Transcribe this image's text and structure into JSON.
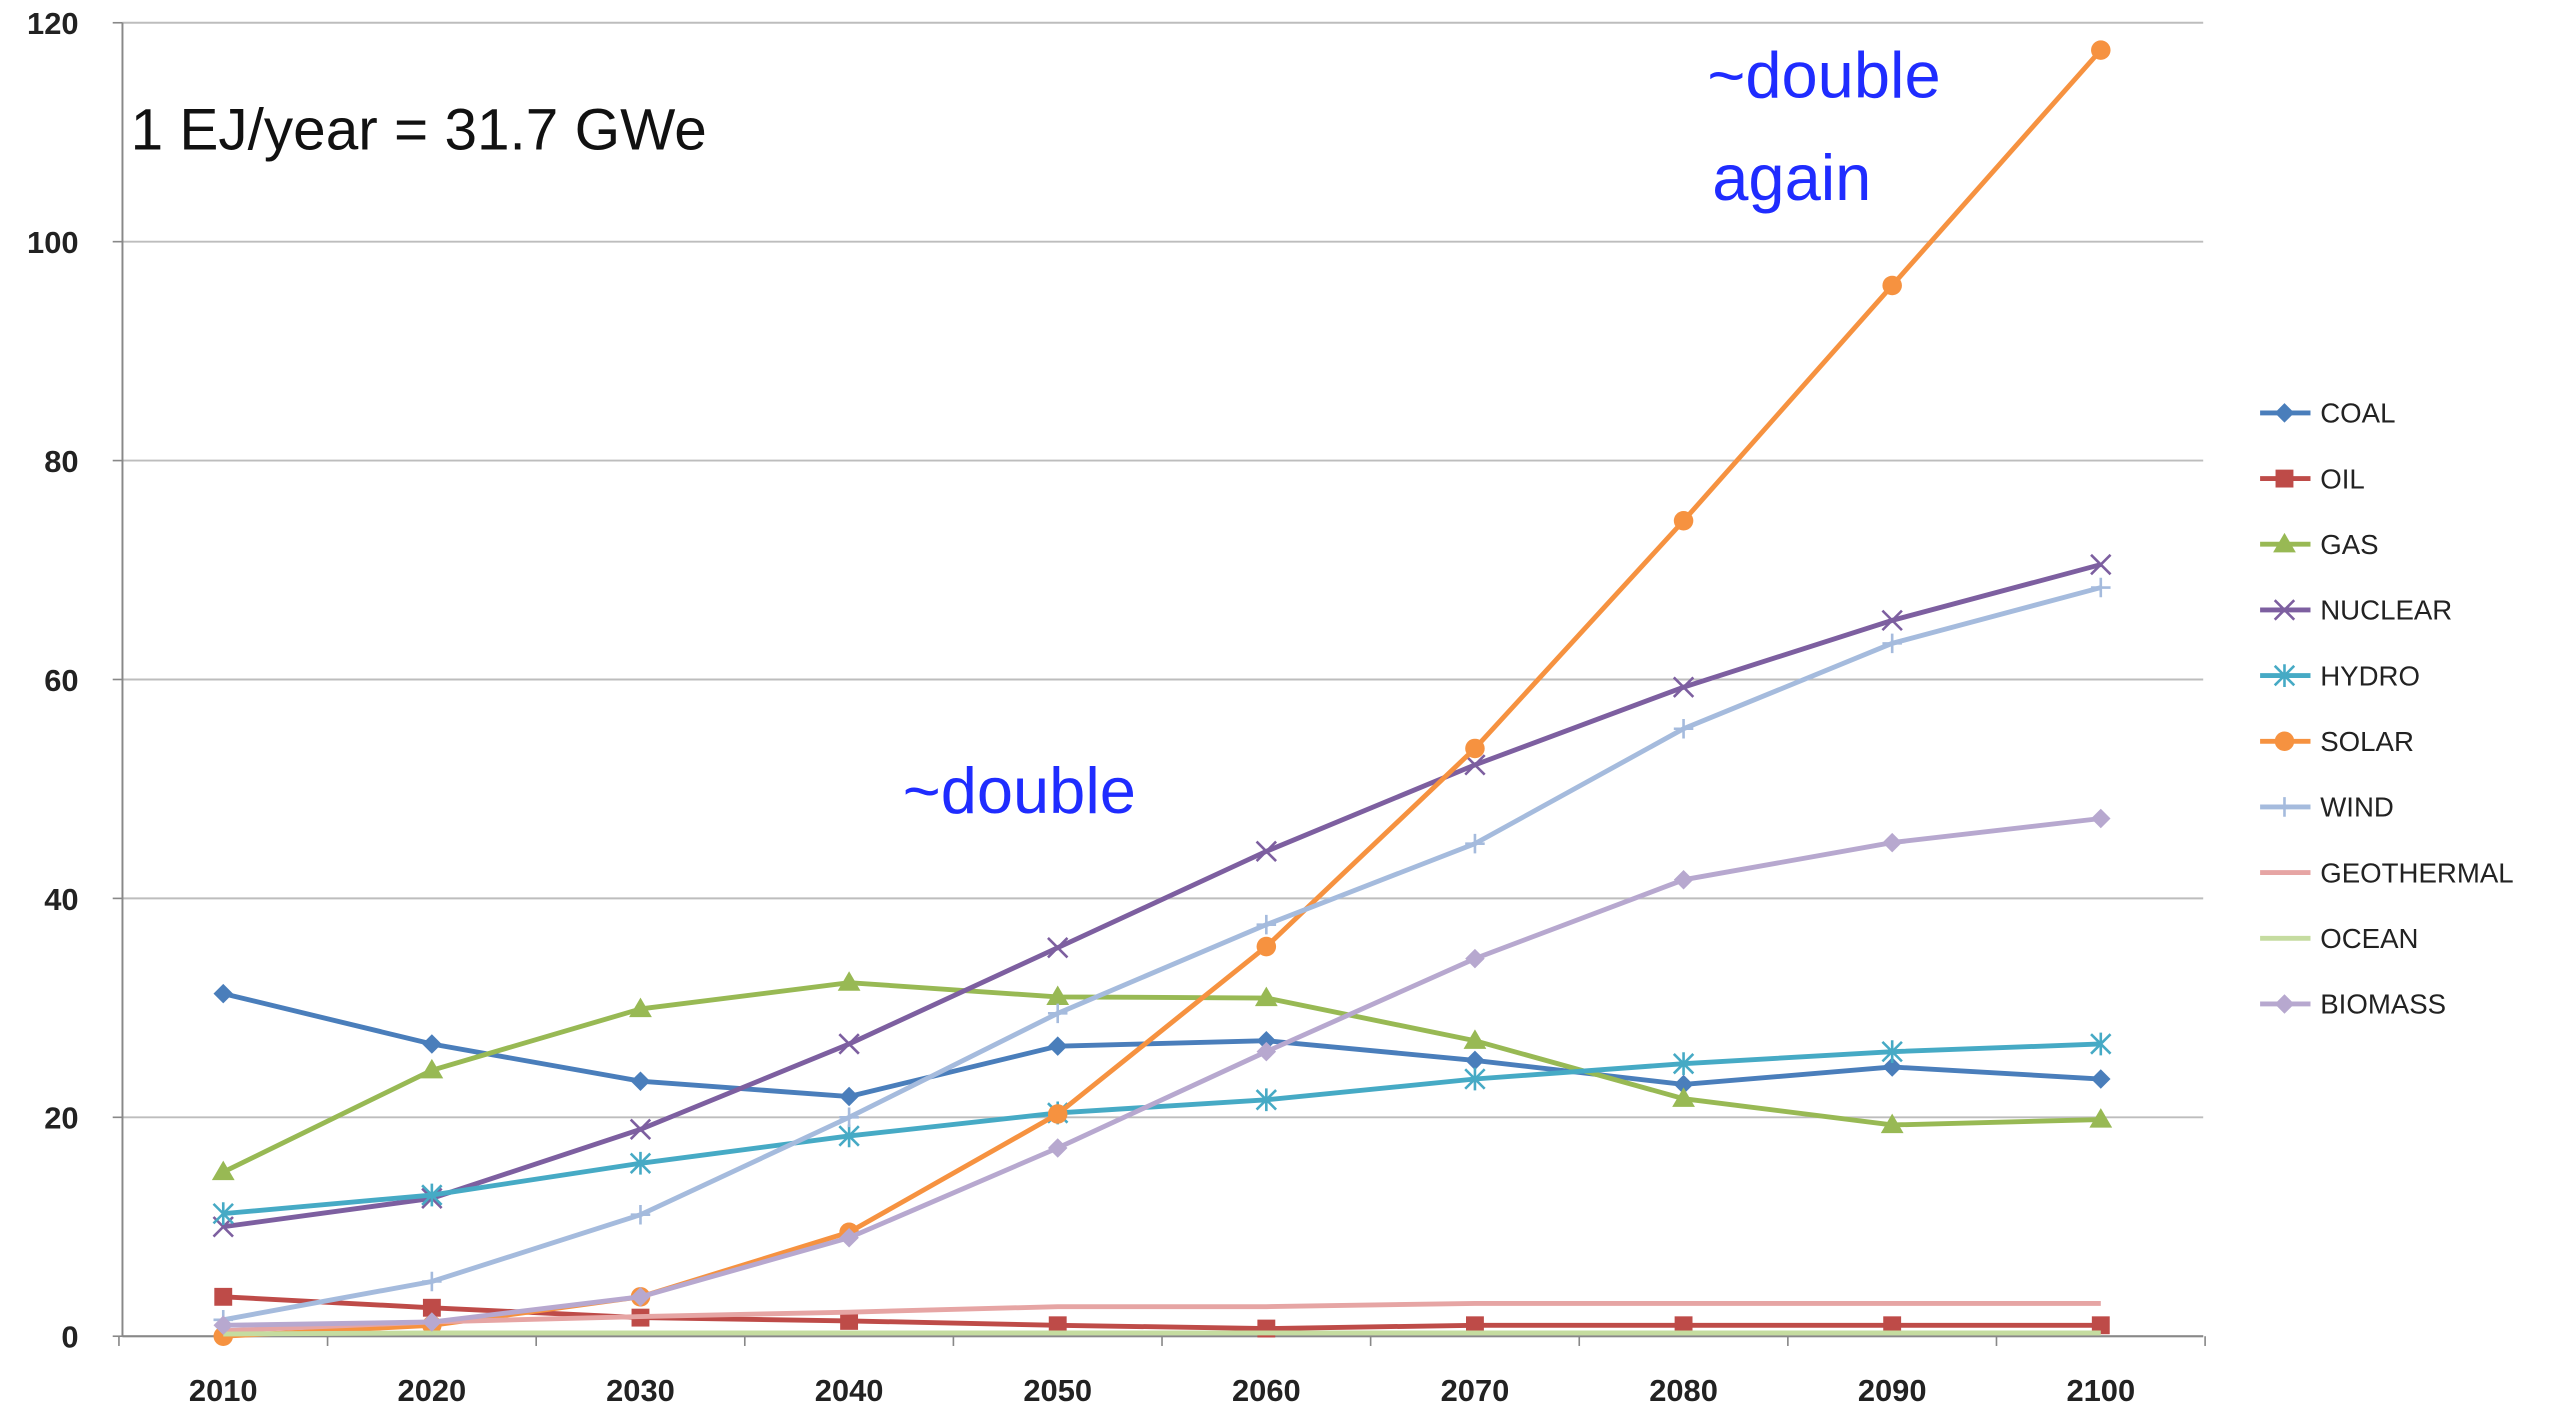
{
  "chart_data": {
    "type": "line",
    "categories": [
      "2010",
      "2020",
      "2030",
      "2040",
      "2050",
      "2060",
      "2070",
      "2080",
      "2090",
      "2100"
    ],
    "ylim": [
      0,
      120
    ],
    "yticks": [
      0,
      20,
      40,
      60,
      80,
      100,
      120
    ],
    "grid": true,
    "legend": "right",
    "annotations": [
      "1 EJ/year = 31.7 GWe",
      "~double",
      [
        "~double",
        "again"
      ]
    ],
    "series": [
      {
        "name": "COAL",
        "color": "#4a7ebb",
        "marker": "diamond",
        "values": [
          31.3,
          26.7,
          23.3,
          21.9,
          26.5,
          27,
          25.2,
          23,
          24.6,
          23.5
        ]
      },
      {
        "name": "OIL",
        "color": "#be4b48",
        "marker": "square",
        "values": [
          3.6,
          2.6,
          1.7,
          1.4,
          1.0,
          0.7,
          1.0,
          1.0,
          1.0,
          1.0
        ]
      },
      {
        "name": "GAS",
        "color": "#98b954",
        "marker": "triangle",
        "values": [
          15,
          24.3,
          29.9,
          32.3,
          31,
          30.9,
          27,
          21.7,
          19.3,
          19.8
        ]
      },
      {
        "name": "NUCLEAR",
        "color": "#7d5fa0",
        "marker": "x",
        "values": [
          10,
          12.6,
          18.9,
          26.7,
          35.5,
          44.3,
          52.2,
          59.3,
          65.4,
          70.5
        ]
      },
      {
        "name": "HYDRO",
        "color": "#46aac5",
        "marker": "star",
        "values": [
          11.2,
          12.9,
          15.8,
          18.3,
          20.4,
          21.6,
          23.5,
          24.9,
          26,
          26.7
        ]
      },
      {
        "name": "SOLAR",
        "color": "#f69240",
        "marker": "circle",
        "values": [
          0,
          1,
          3.6,
          9.5,
          20.3,
          35.6,
          53.7,
          74.5,
          96,
          117.5
        ]
      },
      {
        "name": "WIND",
        "color": "#a5bbdd",
        "marker": "plus",
        "values": [
          1.5,
          5,
          11.1,
          20,
          29.5,
          37.6,
          45,
          55.5,
          63.3,
          68.4
        ]
      },
      {
        "name": "GEOTHERMAL",
        "color": "#e6a5a4",
        "marker": "none",
        "values": [
          0.5,
          1.3,
          1.8,
          2.2,
          2.7,
          2.7,
          3.0,
          3.0,
          3.0,
          3.0
        ]
      },
      {
        "name": "OCEAN",
        "color": "#c5dca0",
        "marker": "none",
        "values": [
          0.2,
          0.3,
          0.3,
          0.3,
          0.3,
          0.3,
          0.3,
          0.3,
          0.3,
          0.3
        ]
      },
      {
        "name": "BIOMASS",
        "color": "#b7a8cf",
        "marker": "diamond",
        "values": [
          1,
          1.3,
          3.6,
          9,
          17.2,
          26,
          34.5,
          41.7,
          45.1,
          47.3
        ]
      }
    ]
  }
}
